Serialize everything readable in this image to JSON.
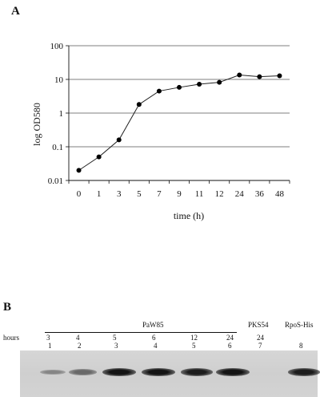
{
  "panel_a": {
    "label": "A"
  },
  "chart_data": {
    "type": "line",
    "xlabel": "time (h)",
    "ylabel": "log OD580",
    "y_scale": "log",
    "ylim": [
      0.01,
      100
    ],
    "y_ticks": [
      "100",
      "10",
      "1",
      "0.1",
      "0.01"
    ],
    "y_tick_values": [
      100,
      10,
      1,
      0.1,
      0.01
    ],
    "categories": [
      "0",
      "1",
      "3",
      "5",
      "7",
      "9",
      "11",
      "12",
      "24",
      "36",
      "48"
    ],
    "values": [
      0.02,
      0.05,
      0.16,
      1.8,
      4.5,
      5.8,
      7.2,
      8.2,
      13.5,
      12.0,
      12.8
    ],
    "grid": true,
    "marker": "filled-circle",
    "colors": {
      "line": "#222222",
      "grid": "#555555",
      "marker": "#000000"
    }
  },
  "panel_b": {
    "label": "B",
    "group_paw85": "PaW85",
    "group_pks54": "PKS54",
    "group_rpos": "RpoS-His",
    "hours_label": "hours",
    "hours": [
      "3",
      "4",
      "5",
      "6",
      "12",
      "24",
      "24"
    ],
    "lanes": [
      "1",
      "2",
      "3",
      "4",
      "5",
      "6",
      "7",
      "8"
    ],
    "band_intensity": [
      0.35,
      0.5,
      0.95,
      0.95,
      0.9,
      0.95,
      0.0,
      0.9
    ]
  }
}
